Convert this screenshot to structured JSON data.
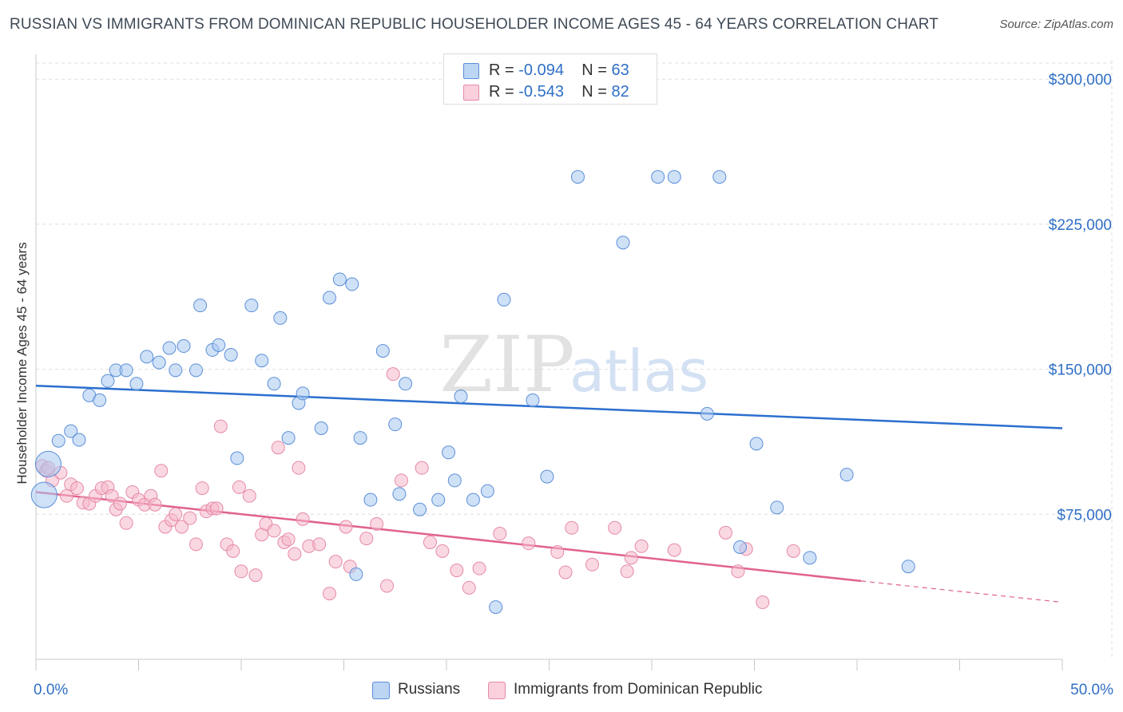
{
  "title": "RUSSIAN VS IMMIGRANTS FROM DOMINICAN REPUBLIC HOUSEHOLDER INCOME AGES 45 - 64 YEARS CORRELATION CHART",
  "source": "Source: ZipAtlas.com",
  "watermark": {
    "zip": "ZIP",
    "atlas": "atlas"
  },
  "legend_top": {
    "rows": [
      {
        "r_label": "R =",
        "r_value": "-0.094",
        "n_label": "N =",
        "n_value": "63",
        "color": "#a8c8f0"
      },
      {
        "r_label": "R =",
        "r_value": "-0.543",
        "n_label": "N =",
        "n_value": "82",
        "color": "#f5b8cb"
      }
    ]
  },
  "legend_bottom": [
    {
      "label": "Russians",
      "color": "#a8c8f0"
    },
    {
      "label": "Immigrants from Dominican Republic",
      "color": "#f5b8cb"
    }
  ],
  "chart_data": {
    "type": "scatter",
    "title": "RUSSIAN VS IMMIGRANTS FROM DOMINICAN REPUBLIC HOUSEHOLDER INCOME AGES 45 - 64 YEARS CORRELATION CHART",
    "xlabel": "",
    "ylabel": "Householder Income Ages 45 - 64 years",
    "xlim": [
      0,
      50
    ],
    "ylim": [
      0,
      310000
    ],
    "x_tick_labels": [
      "0.0%",
      "50.0%"
    ],
    "y_ticks": [
      75000,
      150000,
      225000,
      300000
    ],
    "y_tick_labels": [
      "$75,000",
      "$150,000",
      "$225,000",
      "$300,000"
    ],
    "grid": true,
    "legend_position": "top-center",
    "series": [
      {
        "name": "Russians",
        "color": "#a8c8f0",
        "stroke": "#5b8fd8",
        "trend": {
          "x": [
            0,
            50
          ],
          "y": [
            141500,
            119500
          ],
          "color": "#2b6fcf",
          "dashed_from": null
        },
        "points": [
          [
            0.4,
            85000
          ],
          [
            0.6,
            101000
          ],
          [
            1.1,
            113000
          ],
          [
            1.7,
            118000
          ],
          [
            2.1,
            113500
          ],
          [
            2.6,
            136500
          ],
          [
            3.1,
            134000
          ],
          [
            3.5,
            144000
          ],
          [
            3.9,
            149500
          ],
          [
            4.4,
            149500
          ],
          [
            4.9,
            142500
          ],
          [
            5.4,
            156500
          ],
          [
            6.0,
            153500
          ],
          [
            6.5,
            161000
          ],
          [
            6.8,
            149500
          ],
          [
            7.2,
            162000
          ],
          [
            7.8,
            149500
          ],
          [
            8.0,
            183000
          ],
          [
            8.6,
            160000
          ],
          [
            8.9,
            162500
          ],
          [
            9.5,
            157500
          ],
          [
            9.8,
            104000
          ],
          [
            10.5,
            183000
          ],
          [
            11.0,
            154500
          ],
          [
            11.6,
            142500
          ],
          [
            11.9,
            176500
          ],
          [
            12.3,
            114500
          ],
          [
            12.8,
            132500
          ],
          [
            13.0,
            137500
          ],
          [
            13.9,
            119500
          ],
          [
            14.3,
            187000
          ],
          [
            14.8,
            196500
          ],
          [
            15.4,
            194000
          ],
          [
            15.6,
            44000
          ],
          [
            15.8,
            114500
          ],
          [
            16.3,
            82500
          ],
          [
            16.9,
            159500
          ],
          [
            17.5,
            121500
          ],
          [
            17.7,
            85500
          ],
          [
            18.0,
            142500
          ],
          [
            18.7,
            77500
          ],
          [
            19.6,
            82500
          ],
          [
            20.1,
            107000
          ],
          [
            20.4,
            92500
          ],
          [
            20.7,
            136000
          ],
          [
            21.3,
            82500
          ],
          [
            22.0,
            87000
          ],
          [
            22.4,
            27000
          ],
          [
            22.8,
            186000
          ],
          [
            24.2,
            134000
          ],
          [
            24.9,
            94500
          ],
          [
            26.4,
            249500
          ],
          [
            28.6,
            215500
          ],
          [
            30.3,
            249500
          ],
          [
            31.1,
            249500
          ],
          [
            32.7,
            127000
          ],
          [
            33.3,
            249500
          ],
          [
            34.3,
            58000
          ],
          [
            35.1,
            111500
          ],
          [
            36.1,
            78500
          ],
          [
            37.7,
            52500
          ],
          [
            39.5,
            95500
          ],
          [
            42.5,
            48000
          ]
        ],
        "large_points": [
          [
            0.4,
            85000
          ],
          [
            0.6,
            101000
          ]
        ]
      },
      {
        "name": "Immigrants from Dominican Republic",
        "color": "#f5b8cb",
        "stroke": "#e58aa8",
        "trend": {
          "x": [
            0,
            40.2,
            50
          ],
          "y": [
            86500,
            40500,
            29500
          ],
          "color": "#e0628d",
          "dashed_from": 40.2
        },
        "points": [
          [
            0.3,
            100000
          ],
          [
            0.5,
            97500
          ],
          [
            0.8,
            92500
          ],
          [
            1.2,
            96500
          ],
          [
            1.5,
            84500
          ],
          [
            1.7,
            90500
          ],
          [
            2.0,
            88500
          ],
          [
            2.3,
            81000
          ],
          [
            2.6,
            80500
          ],
          [
            2.9,
            84500
          ],
          [
            3.2,
            88500
          ],
          [
            3.5,
            89000
          ],
          [
            3.7,
            84500
          ],
          [
            3.9,
            77500
          ],
          [
            4.1,
            80500
          ],
          [
            4.4,
            70500
          ],
          [
            4.7,
            86500
          ],
          [
            5.0,
            82500
          ],
          [
            5.3,
            80000
          ],
          [
            5.6,
            84500
          ],
          [
            5.8,
            80000
          ],
          [
            6.1,
            97500
          ],
          [
            6.3,
            68500
          ],
          [
            6.6,
            72000
          ],
          [
            6.8,
            75000
          ],
          [
            7.1,
            68500
          ],
          [
            7.5,
            73000
          ],
          [
            7.8,
            59500
          ],
          [
            8.1,
            88500
          ],
          [
            8.3,
            76500
          ],
          [
            8.6,
            78000
          ],
          [
            8.8,
            78000
          ],
          [
            9.0,
            120500
          ],
          [
            9.3,
            59500
          ],
          [
            9.6,
            56000
          ],
          [
            9.9,
            89000
          ],
          [
            10.0,
            45500
          ],
          [
            10.4,
            84500
          ],
          [
            10.7,
            43500
          ],
          [
            11.0,
            64500
          ],
          [
            11.2,
            70000
          ],
          [
            11.6,
            66500
          ],
          [
            11.8,
            109500
          ],
          [
            12.1,
            60500
          ],
          [
            12.3,
            62000
          ],
          [
            12.6,
            54500
          ],
          [
            12.8,
            99000
          ],
          [
            13.0,
            72500
          ],
          [
            13.3,
            58500
          ],
          [
            13.8,
            59500
          ],
          [
            14.3,
            34000
          ],
          [
            14.6,
            50500
          ],
          [
            15.1,
            68500
          ],
          [
            15.3,
            48000
          ],
          [
            16.1,
            62500
          ],
          [
            16.6,
            70000
          ],
          [
            17.1,
            38000
          ],
          [
            17.4,
            147500
          ],
          [
            17.8,
            92500
          ],
          [
            18.8,
            99000
          ],
          [
            19.2,
            60500
          ],
          [
            19.8,
            56000
          ],
          [
            20.5,
            46000
          ],
          [
            21.1,
            37000
          ],
          [
            21.6,
            47000
          ],
          [
            22.6,
            65000
          ],
          [
            24.0,
            60000
          ],
          [
            25.4,
            55500
          ],
          [
            25.8,
            45000
          ],
          [
            26.1,
            68000
          ],
          [
            27.1,
            49000
          ],
          [
            28.2,
            68000
          ],
          [
            28.8,
            45500
          ],
          [
            29.0,
            52500
          ],
          [
            29.5,
            58500
          ],
          [
            31.1,
            56500
          ],
          [
            33.6,
            65500
          ],
          [
            34.2,
            45500
          ],
          [
            34.6,
            57000
          ],
          [
            35.4,
            29500
          ],
          [
            36.9,
            56000
          ],
          [
            0.6,
            99000
          ]
        ]
      }
    ]
  }
}
